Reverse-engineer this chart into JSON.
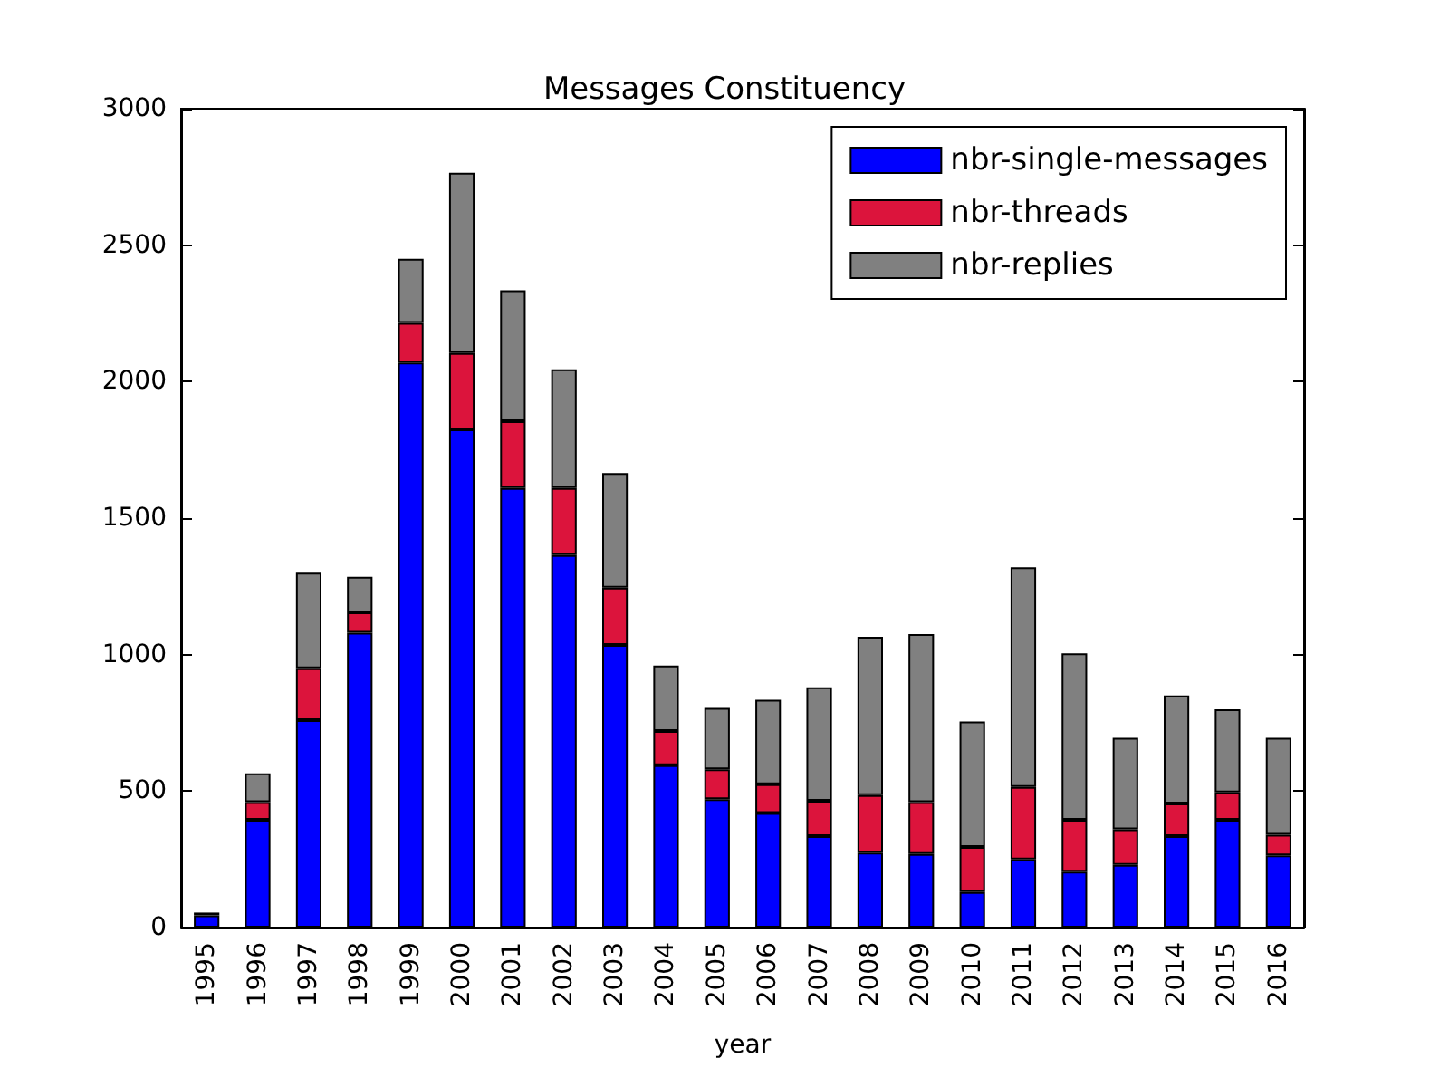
{
  "chart_data": {
    "type": "bar",
    "stacked": true,
    "title": "Messages Constituency",
    "xlabel": "year",
    "categories": [
      "1995",
      "1996",
      "1997",
      "1998",
      "1999",
      "2000",
      "2001",
      "2002",
      "2003",
      "2004",
      "2005",
      "2006",
      "2007",
      "2008",
      "2009",
      "2010",
      "2011",
      "2012",
      "2013",
      "2014",
      "2015",
      "2016"
    ],
    "series": [
      {
        "name": "nbr-single-messages",
        "color": "#0000ff",
        "values": [
          45,
          395,
          760,
          1080,
          2070,
          1825,
          1610,
          1365,
          1035,
          595,
          470,
          420,
          335,
          275,
          270,
          130,
          250,
          205,
          230,
          335,
          395,
          265
        ]
      },
      {
        "name": "nbr-threads",
        "color": "#dc143c",
        "values": [
          10,
          65,
          190,
          75,
          145,
          280,
          245,
          245,
          210,
          125,
          110,
          105,
          130,
          210,
          190,
          165,
          265,
          190,
          130,
          120,
          100,
          75
        ]
      },
      {
        "name": "nbr-replies",
        "color": "#808080",
        "values": [
          null,
          105,
          350,
          130,
          235,
          660,
          480,
          435,
          420,
          240,
          225,
          310,
          415,
          580,
          615,
          460,
          805,
          610,
          335,
          395,
          305,
          355
        ]
      }
    ],
    "ylim": [
      0,
      3000
    ],
    "yticks": [
      0,
      500,
      1000,
      1500,
      2000,
      2500,
      3000
    ],
    "grid": false,
    "legend": "top right"
  }
}
